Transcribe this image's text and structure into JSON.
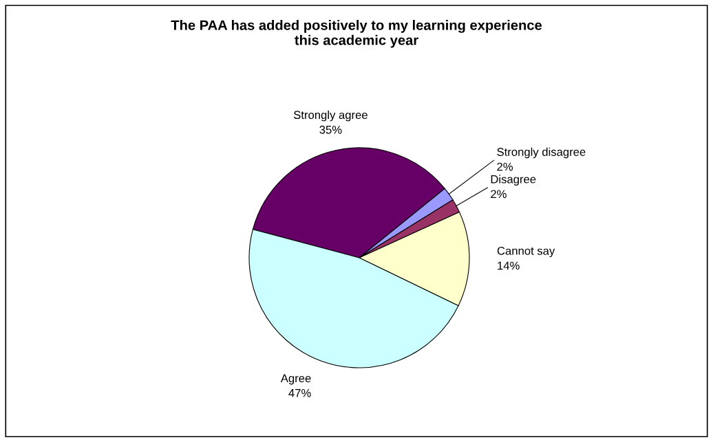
{
  "chart_data": {
    "type": "pie",
    "title": "The PAA has added positively to my learning experience\nthis academic year",
    "categories": [
      "Strongly agree",
      "Strongly disagree",
      "Disagree",
      "Cannot say",
      "Agree"
    ],
    "values": [
      35,
      2,
      2,
      14,
      47
    ],
    "colors": [
      "#660066",
      "#9999ff",
      "#993366",
      "#ffffcc",
      "#ccffff"
    ],
    "value_labels": [
      "35%",
      "2%",
      "2%",
      "14%",
      "47%"
    ],
    "legend": false
  }
}
